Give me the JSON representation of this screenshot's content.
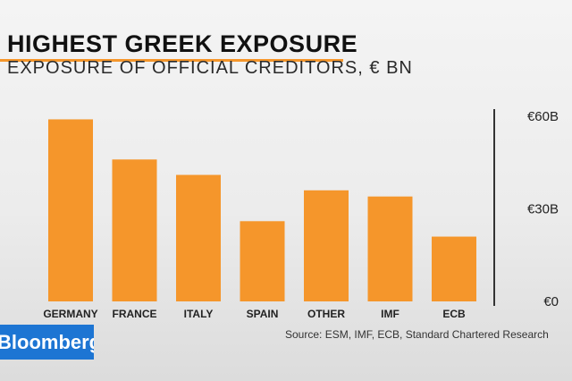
{
  "chart_data": {
    "type": "bar",
    "title": "HIGHEST GREEK EXPOSURE",
    "subtitle": "EXPOSURE OF OFFICIAL CREDITORS, € BN",
    "categories": [
      "GERMANY",
      "FRANCE",
      "ITALY",
      "SPAIN",
      "OTHER",
      "IMF",
      "ECB"
    ],
    "values": [
      59,
      46,
      41,
      26,
      36,
      34,
      21
    ],
    "ylim": [
      0,
      60
    ],
    "yticks": [
      {
        "value": 60,
        "label": "€60B"
      },
      {
        "value": 30,
        "label": "€30B"
      },
      {
        "value": 0,
        "label": "€0"
      }
    ],
    "axis_position": "right",
    "grid": false,
    "bar_color": "#f5962b",
    "source": "Source: ESM, IMF, ECB, Standard Chartered Research"
  },
  "branding": {
    "logo_text": "Bloomberg",
    "logo_color": "#1d75d3"
  }
}
